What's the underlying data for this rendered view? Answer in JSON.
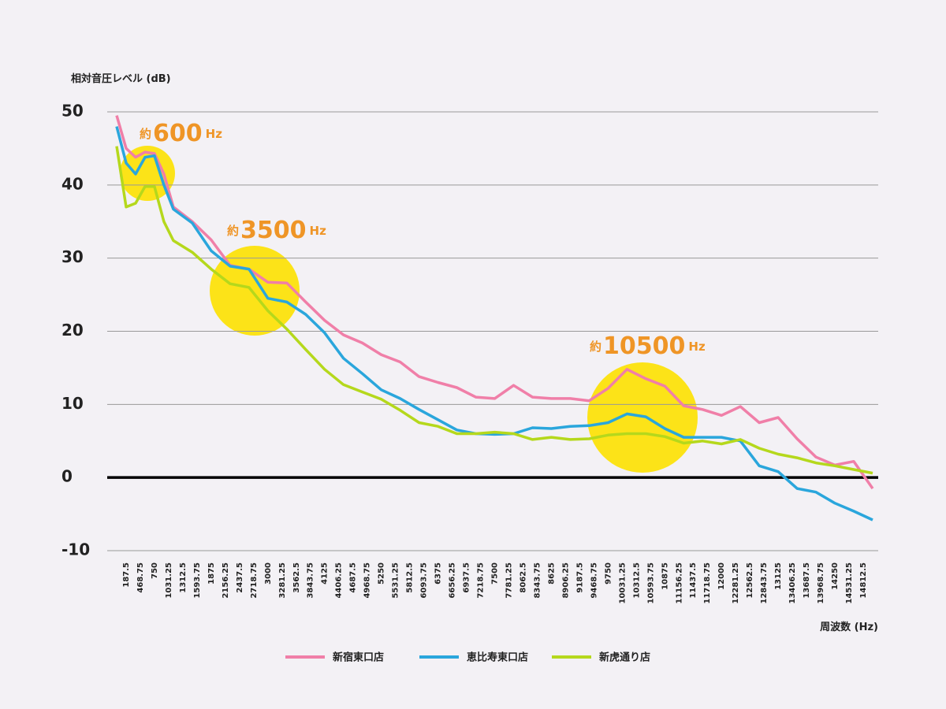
{
  "chart_data": {
    "type": "line",
    "y_axis_label": "相対音圧レベル (dB)",
    "x_axis_label": "周波数 (Hz)",
    "x": [
      0,
      187.5,
      375,
      562.5,
      750,
      937.5,
      1125,
      1500,
      1875,
      2250,
      2625,
      3000,
      3375,
      3750,
      4125,
      4500,
      4875,
      5250,
      5625,
      6000,
      6375,
      6750,
      7125,
      7500,
      7875,
      8250,
      8625,
      9000,
      9375,
      9750,
      10125,
      10500,
      10875,
      11250,
      11625,
      12000,
      12375,
      12750,
      13125,
      13500,
      13875,
      14250,
      14625,
      15000
    ],
    "series": [
      {
        "name": "新宿東口店",
        "color": "#f07fa8",
        "values": [
          49.5,
          45,
          43.8,
          44.5,
          44.3,
          41.5,
          37,
          35,
          32.5,
          29,
          28.5,
          26.7,
          26.6,
          24,
          21.5,
          19.5,
          18.4,
          16.8,
          15.8,
          13.8,
          13,
          12.3,
          11,
          10.8,
          12.6,
          11,
          10.8,
          10.8,
          10.5,
          12.2,
          14.8,
          13.5,
          12.5,
          9.8,
          9.3,
          8.5,
          9.7,
          7.5,
          8.2,
          5.3,
          2.8,
          1.7,
          2.2,
          -1.5
        ]
      },
      {
        "name": "恵比寿東口店",
        "color": "#2aa6dc",
        "values": [
          48,
          43,
          41.5,
          43.8,
          44,
          40,
          36.7,
          34.8,
          31,
          28.9,
          28.5,
          24.5,
          24,
          22.3,
          19.8,
          16.3,
          14.2,
          12,
          10.8,
          9.3,
          7.9,
          6.5,
          6,
          5.9,
          6,
          6.8,
          6.7,
          7,
          7.1,
          7.5,
          8.7,
          8.3,
          6.7,
          5.5,
          5.5,
          5.5,
          5,
          1.6,
          0.8,
          -1.5,
          -2,
          -3.5,
          -4.6,
          -5.8
        ]
      },
      {
        "name": "新虎通り店",
        "color": "#b5d81c",
        "values": [
          45.3,
          37,
          37.5,
          39.8,
          39.8,
          35,
          32.4,
          30.8,
          28.5,
          26.5,
          26,
          22.8,
          20.3,
          17.5,
          14.8,
          12.7,
          11.7,
          10.7,
          9.2,
          7.5,
          7,
          6,
          6,
          6.2,
          6,
          5.2,
          5.5,
          5.2,
          5.3,
          5.8,
          6,
          6,
          5.6,
          4.7,
          5,
          4.6,
          5.2,
          4,
          3.2,
          2.7,
          2,
          1.6,
          1.1,
          0.6
        ]
      }
    ],
    "xlim": [
      0,
      15000
    ],
    "xticks": [
      187.5,
      468.75,
      750,
      1031.25,
      1312.5,
      1593.75,
      1875,
      2156.25,
      2437.5,
      2718.75,
      3000,
      3281.25,
      3562.5,
      3843.75,
      4125,
      4406.25,
      4687.5,
      4968.75,
      5250,
      5531.25,
      5812.5,
      6093.75,
      6375,
      6656.25,
      6937.5,
      7218.75,
      7500,
      7781.25,
      8062.5,
      8343.75,
      8625,
      8906.25,
      9187.5,
      9468.75,
      9750,
      10031.25,
      10312.5,
      10593.75,
      10875,
      11156.25,
      11437.5,
      11718.75,
      12000,
      12281.25,
      12562.5,
      12843.75,
      13125,
      13406.25,
      13687.5,
      13968.75,
      14250,
      14531.25,
      14812.5
    ],
    "ylim": [
      -10,
      50
    ],
    "yticks": [
      -10,
      0,
      10,
      20,
      30,
      40,
      50
    ],
    "grid": true,
    "legend": "bottom",
    "annotations": [
      {
        "prefix": "約",
        "label": "600",
        "unit": "Hz"
      },
      {
        "prefix": "約",
        "label": "3500",
        "unit": "Hz"
      },
      {
        "prefix": "約",
        "label": "10500",
        "unit": "Hz"
      }
    ]
  }
}
